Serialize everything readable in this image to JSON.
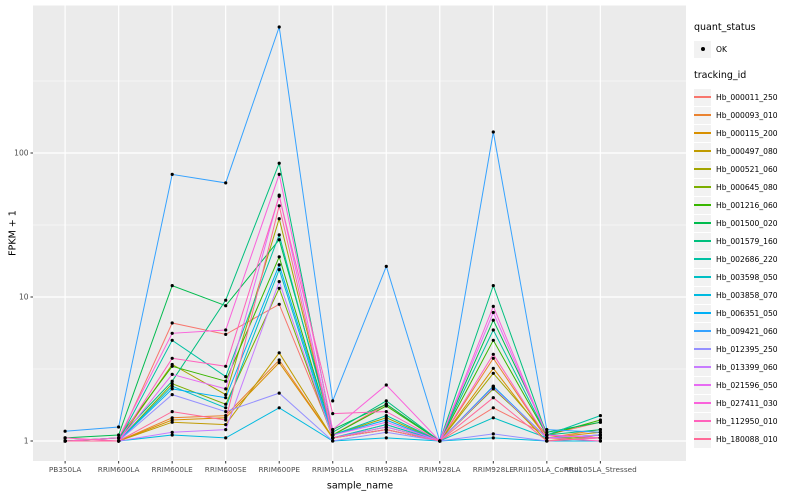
{
  "figure": {
    "background": "#FFFFFF",
    "panel_background": "#EBEBEB",
    "grid_color": "#FFFFFF",
    "axis_text_color": "#4D4D4D",
    "tick_color": "#333333",
    "point_color": "#000000",
    "legend_key_background": "#F2F2F2"
  },
  "legend": {
    "quant_status": {
      "title": "quant_status",
      "items": [
        {
          "label": "OK",
          "marker": "point-icon"
        }
      ]
    },
    "tracking_id": {
      "title": "tracking_id"
    }
  },
  "chart_data": {
    "type": "line",
    "title": "",
    "xlabel": "sample_name",
    "ylabel": "FPKM + 1",
    "y_scale": "log10",
    "y_ticks": [
      1,
      10,
      100
    ],
    "ylim": [
      0.95,
      870
    ],
    "grid": "on",
    "legend_position": "right",
    "point_marker": "black-dot",
    "categories": [
      "PB350LA",
      "RRIM600LA",
      "RRIM600LE",
      "RRIM600SE",
      "RRIM600PE",
      "RRIM901LA",
      "RRIM928BA",
      "RRIM928LA",
      "RRIM928LE",
      "RRII105LA_Control",
      "RRII105LA_Stressed"
    ],
    "series": [
      {
        "name": "Hb_000011_250",
        "color": "#F8766D",
        "values": [
          1.0,
          1.0,
          6.6,
          5.5,
          8.9,
          1.1,
          1.8,
          1.0,
          1.7,
          1.1,
          1.35
        ]
      },
      {
        "name": "Hb_000093_010",
        "color": "#EA8331",
        "values": [
          1.0,
          1.0,
          1.45,
          1.5,
          3.65,
          1.05,
          1.3,
          1.0,
          3.75,
          1.05,
          1.2
        ]
      },
      {
        "name": "Hb_000115_200",
        "color": "#D89000",
        "values": [
          1.0,
          1.0,
          1.4,
          1.45,
          3.5,
          1.05,
          1.25,
          1.0,
          3.2,
          1.05,
          1.15
        ]
      },
      {
        "name": "Hb_000497_080",
        "color": "#C09B00",
        "values": [
          1.0,
          1.0,
          1.35,
          1.3,
          4.1,
          1.05,
          1.2,
          1.0,
          2.4,
          1.0,
          1.1
        ]
      },
      {
        "name": "Hb_000521_060",
        "color": "#A3A500",
        "values": [
          1.0,
          1.0,
          3.4,
          2.1,
          35,
          1.1,
          1.45,
          1.0,
          2.95,
          1.1,
          1.05
        ]
      },
      {
        "name": "Hb_000645_080",
        "color": "#7CAE00",
        "values": [
          1.0,
          1.0,
          2.5,
          1.8,
          11.5,
          1.05,
          1.2,
          1.0,
          2.3,
          1.05,
          1.05
        ]
      },
      {
        "name": "Hb_001216_060",
        "color": "#39B600",
        "values": [
          1.0,
          1.05,
          3.3,
          2.6,
          19,
          1.1,
          1.75,
          1.0,
          5.0,
          1.1,
          1.4
        ]
      },
      {
        "name": "Hb_001500_020",
        "color": "#00BB4E",
        "values": [
          1.05,
          1.1,
          12,
          8.7,
          25,
          1.2,
          1.8,
          1.0,
          6.9,
          1.15,
          1.35
        ]
      },
      {
        "name": "Hb_001579_160",
        "color": "#00BF7D",
        "values": [
          1.0,
          1.05,
          2.6,
          9.5,
          85,
          1.15,
          1.9,
          1.0,
          12,
          1.1,
          1.2
        ]
      },
      {
        "name": "Hb_002686_220",
        "color": "#00C1A3",
        "values": [
          1.0,
          1.0,
          5.0,
          2.8,
          27,
          1.1,
          1.5,
          1.0,
          5.9,
          1.1,
          1.5
        ]
      },
      {
        "name": "Hb_003598_050",
        "color": "#00BFC4",
        "values": [
          1.0,
          1.0,
          2.4,
          1.7,
          15.5,
          1.05,
          1.3,
          1.0,
          1.45,
          1.05,
          1.1
        ]
      },
      {
        "name": "Hb_003858_070",
        "color": "#00BAE0",
        "values": [
          1.0,
          1.0,
          1.1,
          1.05,
          1.7,
          1.0,
          1.05,
          1.0,
          1.05,
          1.0,
          1.0
        ]
      },
      {
        "name": "Hb_006351_050",
        "color": "#00B0F6",
        "values": [
          1.0,
          1.0,
          2.3,
          2.0,
          16.7,
          1.1,
          1.4,
          1.0,
          2.4,
          1.05,
          1.1
        ]
      },
      {
        "name": "Hb_009421_060",
        "color": "#35A2FF",
        "values": [
          1.17,
          1.25,
          71,
          62,
          750,
          1.9,
          16.3,
          1.0,
          140,
          1.2,
          1.15
        ]
      },
      {
        "name": "Hb_012395_250",
        "color": "#9590FF",
        "values": [
          1.0,
          1.0,
          2.1,
          1.6,
          2.15,
          1.0,
          1.15,
          1.0,
          1.12,
          1.0,
          1.05
        ]
      },
      {
        "name": "Hb_013399_060",
        "color": "#C77CFF",
        "values": [
          1.0,
          1.0,
          1.15,
          1.2,
          12.8,
          1.05,
          1.25,
          1.0,
          2.35,
          1.05,
          1.1
        ]
      },
      {
        "name": "Hb_021596_050",
        "color": "#E76BF3",
        "values": [
          1.0,
          1.0,
          2.9,
          2.3,
          51,
          1.1,
          1.35,
          1.0,
          7.8,
          1.1,
          1.05
        ]
      },
      {
        "name": "Hb_027411_030",
        "color": "#FA62DB",
        "values": [
          1.0,
          1.05,
          5.6,
          5.9,
          71,
          1.2,
          2.45,
          1.0,
          8.6,
          1.1,
          1.05
        ]
      },
      {
        "name": "Hb_112950_010",
        "color": "#FF62BC",
        "values": [
          1.05,
          1.0,
          3.75,
          3.3,
          50,
          1.55,
          1.6,
          1.0,
          4.0,
          1.05,
          1.0
        ]
      },
      {
        "name": "Hb_180088_010",
        "color": "#FF6A98",
        "values": [
          1.0,
          1.0,
          1.6,
          1.4,
          43,
          1.05,
          1.2,
          1.0,
          2.0,
          1.0,
          1.05
        ]
      }
    ]
  }
}
